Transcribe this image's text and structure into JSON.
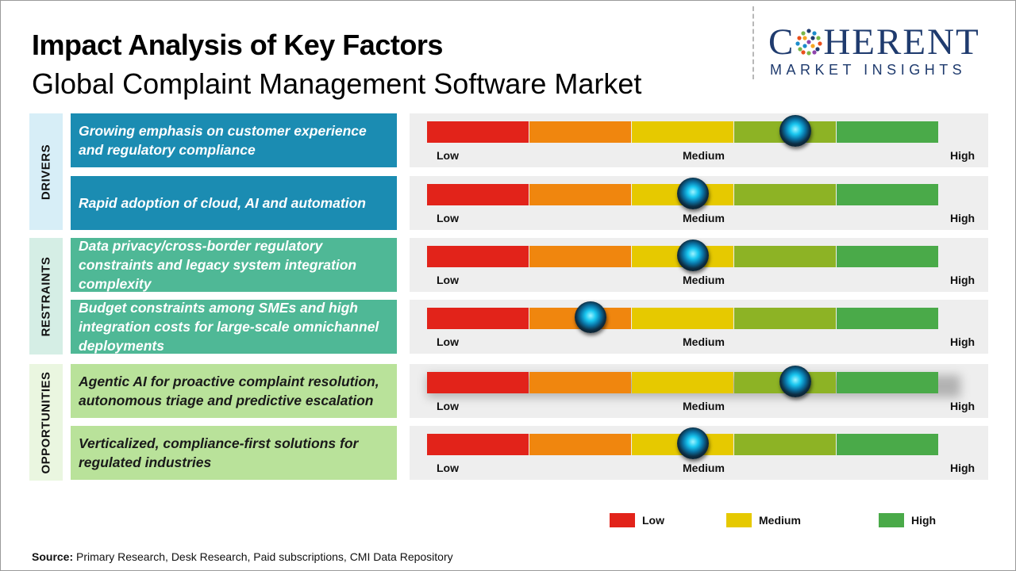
{
  "header": {
    "title": "Impact Analysis of Key Factors",
    "subtitle": "Global Complaint Management Software Market"
  },
  "logo": {
    "main_left": "C",
    "main_right": "HERENT",
    "sub": "MARKET INSIGHTS"
  },
  "colors": {
    "low": "#e2231a",
    "low_mid": "#f0860e",
    "medium": "#e6c900",
    "mid_high": "#8db325",
    "high": "#4aaa49",
    "drivers_bg": "#1b8cb2",
    "restraints_bg": "#4fb896",
    "opportunities_bg": "#b9e29a",
    "drivers_cat": "#d7eef7",
    "restraints_cat": "#d5eee5",
    "opportunities_cat": "#eaf6e0"
  },
  "chart_data": {
    "type": "gauge",
    "scale": [
      "Low",
      "Medium",
      "High"
    ],
    "scale_range": [
      0,
      5
    ],
    "note": "value = knob position on a 0–5 scale across five colour bands (Low → High)",
    "groups": [
      {
        "name": "DRIVERS",
        "factors": [
          {
            "label": "Growing emphasis on customer experience and regulatory compliance",
            "value": 3.6
          },
          {
            "label": "Rapid adoption of cloud, AI and automation",
            "value": 2.6
          }
        ]
      },
      {
        "name": "RESTRAINTS",
        "factors": [
          {
            "label": "Data privacy/cross-border regulatory constraints and legacy system integration complexity",
            "value": 2.6
          },
          {
            "label": "Budget constraints among SMEs and high integration costs for large-scale omnichannel deployments",
            "value": 1.6
          }
        ]
      },
      {
        "name": "OPPORTUNITIES",
        "factors": [
          {
            "label": "Agentic AI for proactive complaint resolution, autonomous triage and predictive escalation",
            "value": 3.6
          },
          {
            "label": "Verticalized, compliance-first solutions for regulated industries",
            "value": 2.6
          }
        ]
      }
    ],
    "tick_labels": {
      "low": "Low",
      "medium": "Medium",
      "high": "High"
    },
    "legend": [
      {
        "label": "Low",
        "color": "#e2231a"
      },
      {
        "label": "Medium",
        "color": "#e6c900"
      },
      {
        "label": "High",
        "color": "#4aaa49"
      }
    ]
  },
  "source": {
    "label": "Source:",
    "text": "Primary Research, Desk Research, Paid subscriptions, CMI Data Repository"
  }
}
